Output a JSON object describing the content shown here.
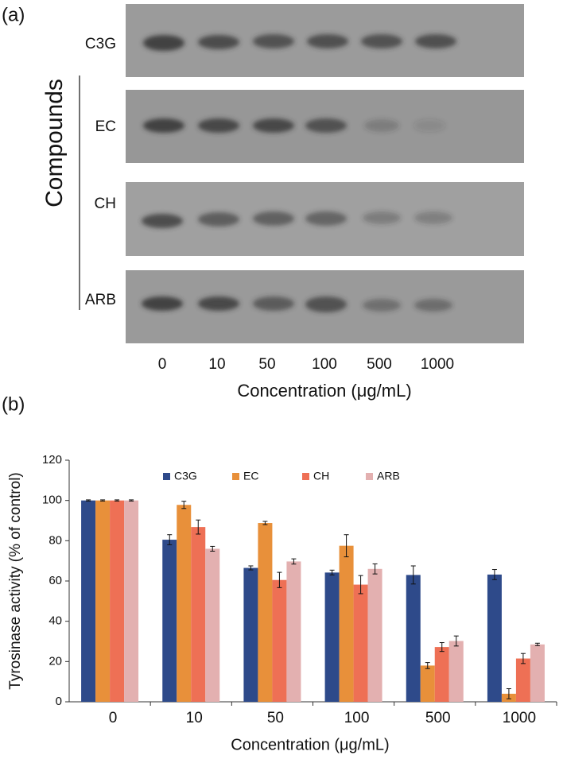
{
  "gel": {
    "panel_label": "(a)",
    "axis_title": "Compounds",
    "rows": [
      "C3G",
      "EC",
      "CH",
      "ARB"
    ],
    "lanes": [
      "0",
      "10",
      "50",
      "100",
      "500",
      "1000"
    ],
    "x_label": "Concentration (μg/mL)"
  },
  "chart_data": {
    "type": "bar",
    "panel_label": "(b)",
    "x_label": "Concentration (μg/mL)",
    "y_label": "Tyrosinase activity (% of control)",
    "categories": [
      "0",
      "10",
      "50",
      "100",
      "500",
      "1000"
    ],
    "series": [
      {
        "name": "C3G",
        "color": "#2e4a8a",
        "values": [
          100,
          80.5,
          66.5,
          64.2,
          63,
          63.2
        ],
        "errors": [
          0.3,
          2.5,
          1,
          1.2,
          4.5,
          2.5
        ]
      },
      {
        "name": "EC",
        "color": "#e8903a",
        "values": [
          100,
          97.8,
          88.8,
          77.5,
          18,
          4
        ],
        "errors": [
          0.3,
          1.8,
          0.8,
          5.5,
          1.5,
          2.5
        ]
      },
      {
        "name": "CH",
        "color": "#ee7055",
        "values": [
          100,
          86.8,
          60.5,
          58.2,
          27.2,
          21.5
        ],
        "errors": [
          0.3,
          3.5,
          3.8,
          4.5,
          2.2,
          2.5
        ]
      },
      {
        "name": "ARB",
        "color": "#e3b0b0",
        "values": [
          100,
          76,
          69.7,
          66,
          30.2,
          28.5
        ],
        "errors": [
          0.3,
          1.2,
          1.3,
          2.5,
          2.5,
          0.6
        ]
      }
    ],
    "ylim": [
      0,
      120
    ],
    "yticks": [
      0,
      20,
      40,
      60,
      80,
      100,
      120
    ],
    "grid": false,
    "legend": "top"
  }
}
